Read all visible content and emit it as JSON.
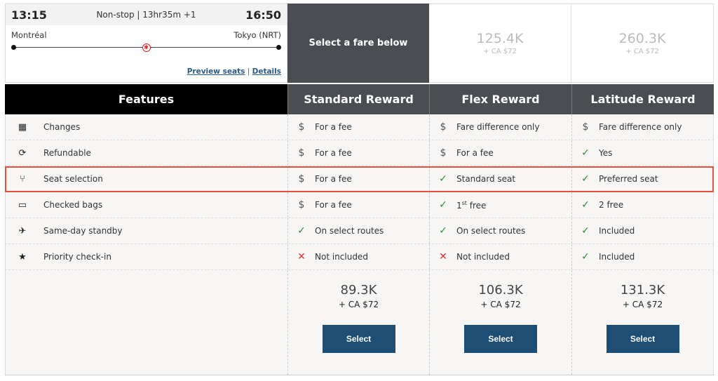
{
  "flight": {
    "depart_time": "13:15",
    "arrive_time": "16:50",
    "summary": "Non-stop | 13hr35m +1",
    "origin": "Montréal",
    "destination": "Tokyo (NRT)",
    "preview_seats": "Preview seats",
    "separator": "|",
    "details": "Details"
  },
  "select_prompt": "Select a fare below",
  "top_fares": [
    {
      "points": "125.4K",
      "cash": "+ CA $72"
    },
    {
      "points": "260.3K",
      "cash": "+ CA $72"
    }
  ],
  "columns": [
    "Features",
    "Standard Reward",
    "Flex Reward",
    "Latitude Reward"
  ],
  "features": [
    {
      "label": "Changes",
      "icon": "calendar-icon",
      "cells": [
        {
          "icon": "dollar",
          "text": "For a fee"
        },
        {
          "icon": "dollar",
          "text": "Fare difference only"
        },
        {
          "icon": "dollar",
          "text": "Fare difference only"
        }
      ]
    },
    {
      "label": "Refundable",
      "icon": "refund-icon",
      "cells": [
        {
          "icon": "dollar",
          "text": "For a fee"
        },
        {
          "icon": "dollar",
          "text": "For a fee"
        },
        {
          "icon": "check",
          "text": "Yes"
        }
      ]
    },
    {
      "label": "Seat selection",
      "icon": "seat-icon",
      "highlighted": true,
      "cells": [
        {
          "icon": "dollar",
          "text": "For a fee"
        },
        {
          "icon": "check",
          "text": "Standard seat"
        },
        {
          "icon": "check",
          "text": "Preferred seat"
        }
      ]
    },
    {
      "label": "Checked bags",
      "icon": "bag-icon",
      "cells": [
        {
          "icon": "dollar",
          "text": "For a fee"
        },
        {
          "icon": "check",
          "text": "1",
          "sup": "st",
          "after": " free"
        },
        {
          "icon": "check",
          "text": "2 free"
        }
      ]
    },
    {
      "label": "Same-day standby",
      "icon": "standby-icon",
      "cells": [
        {
          "icon": "check",
          "text": "On select routes"
        },
        {
          "icon": "check",
          "text": "On select routes"
        },
        {
          "icon": "check",
          "text": "Included"
        }
      ]
    },
    {
      "label": "Priority check-in",
      "icon": "star-box-icon",
      "cells": [
        {
          "icon": "cross",
          "text": "Not included"
        },
        {
          "icon": "cross",
          "text": "Not included"
        },
        {
          "icon": "check",
          "text": "Included"
        }
      ]
    }
  ],
  "fares": [
    {
      "points": "89.3K",
      "cash": "+ CA $72",
      "button": "Select"
    },
    {
      "points": "106.3K",
      "cash": "+ CA $72",
      "button": "Select"
    },
    {
      "points": "131.3K",
      "cash": "+ CA $72",
      "button": "Select"
    }
  ],
  "colors": {
    "highlight": "#e8503a",
    "button": "#1f4e75",
    "header": "#4a4d52",
    "check": "#2e8b3a",
    "cross": "#d33"
  }
}
